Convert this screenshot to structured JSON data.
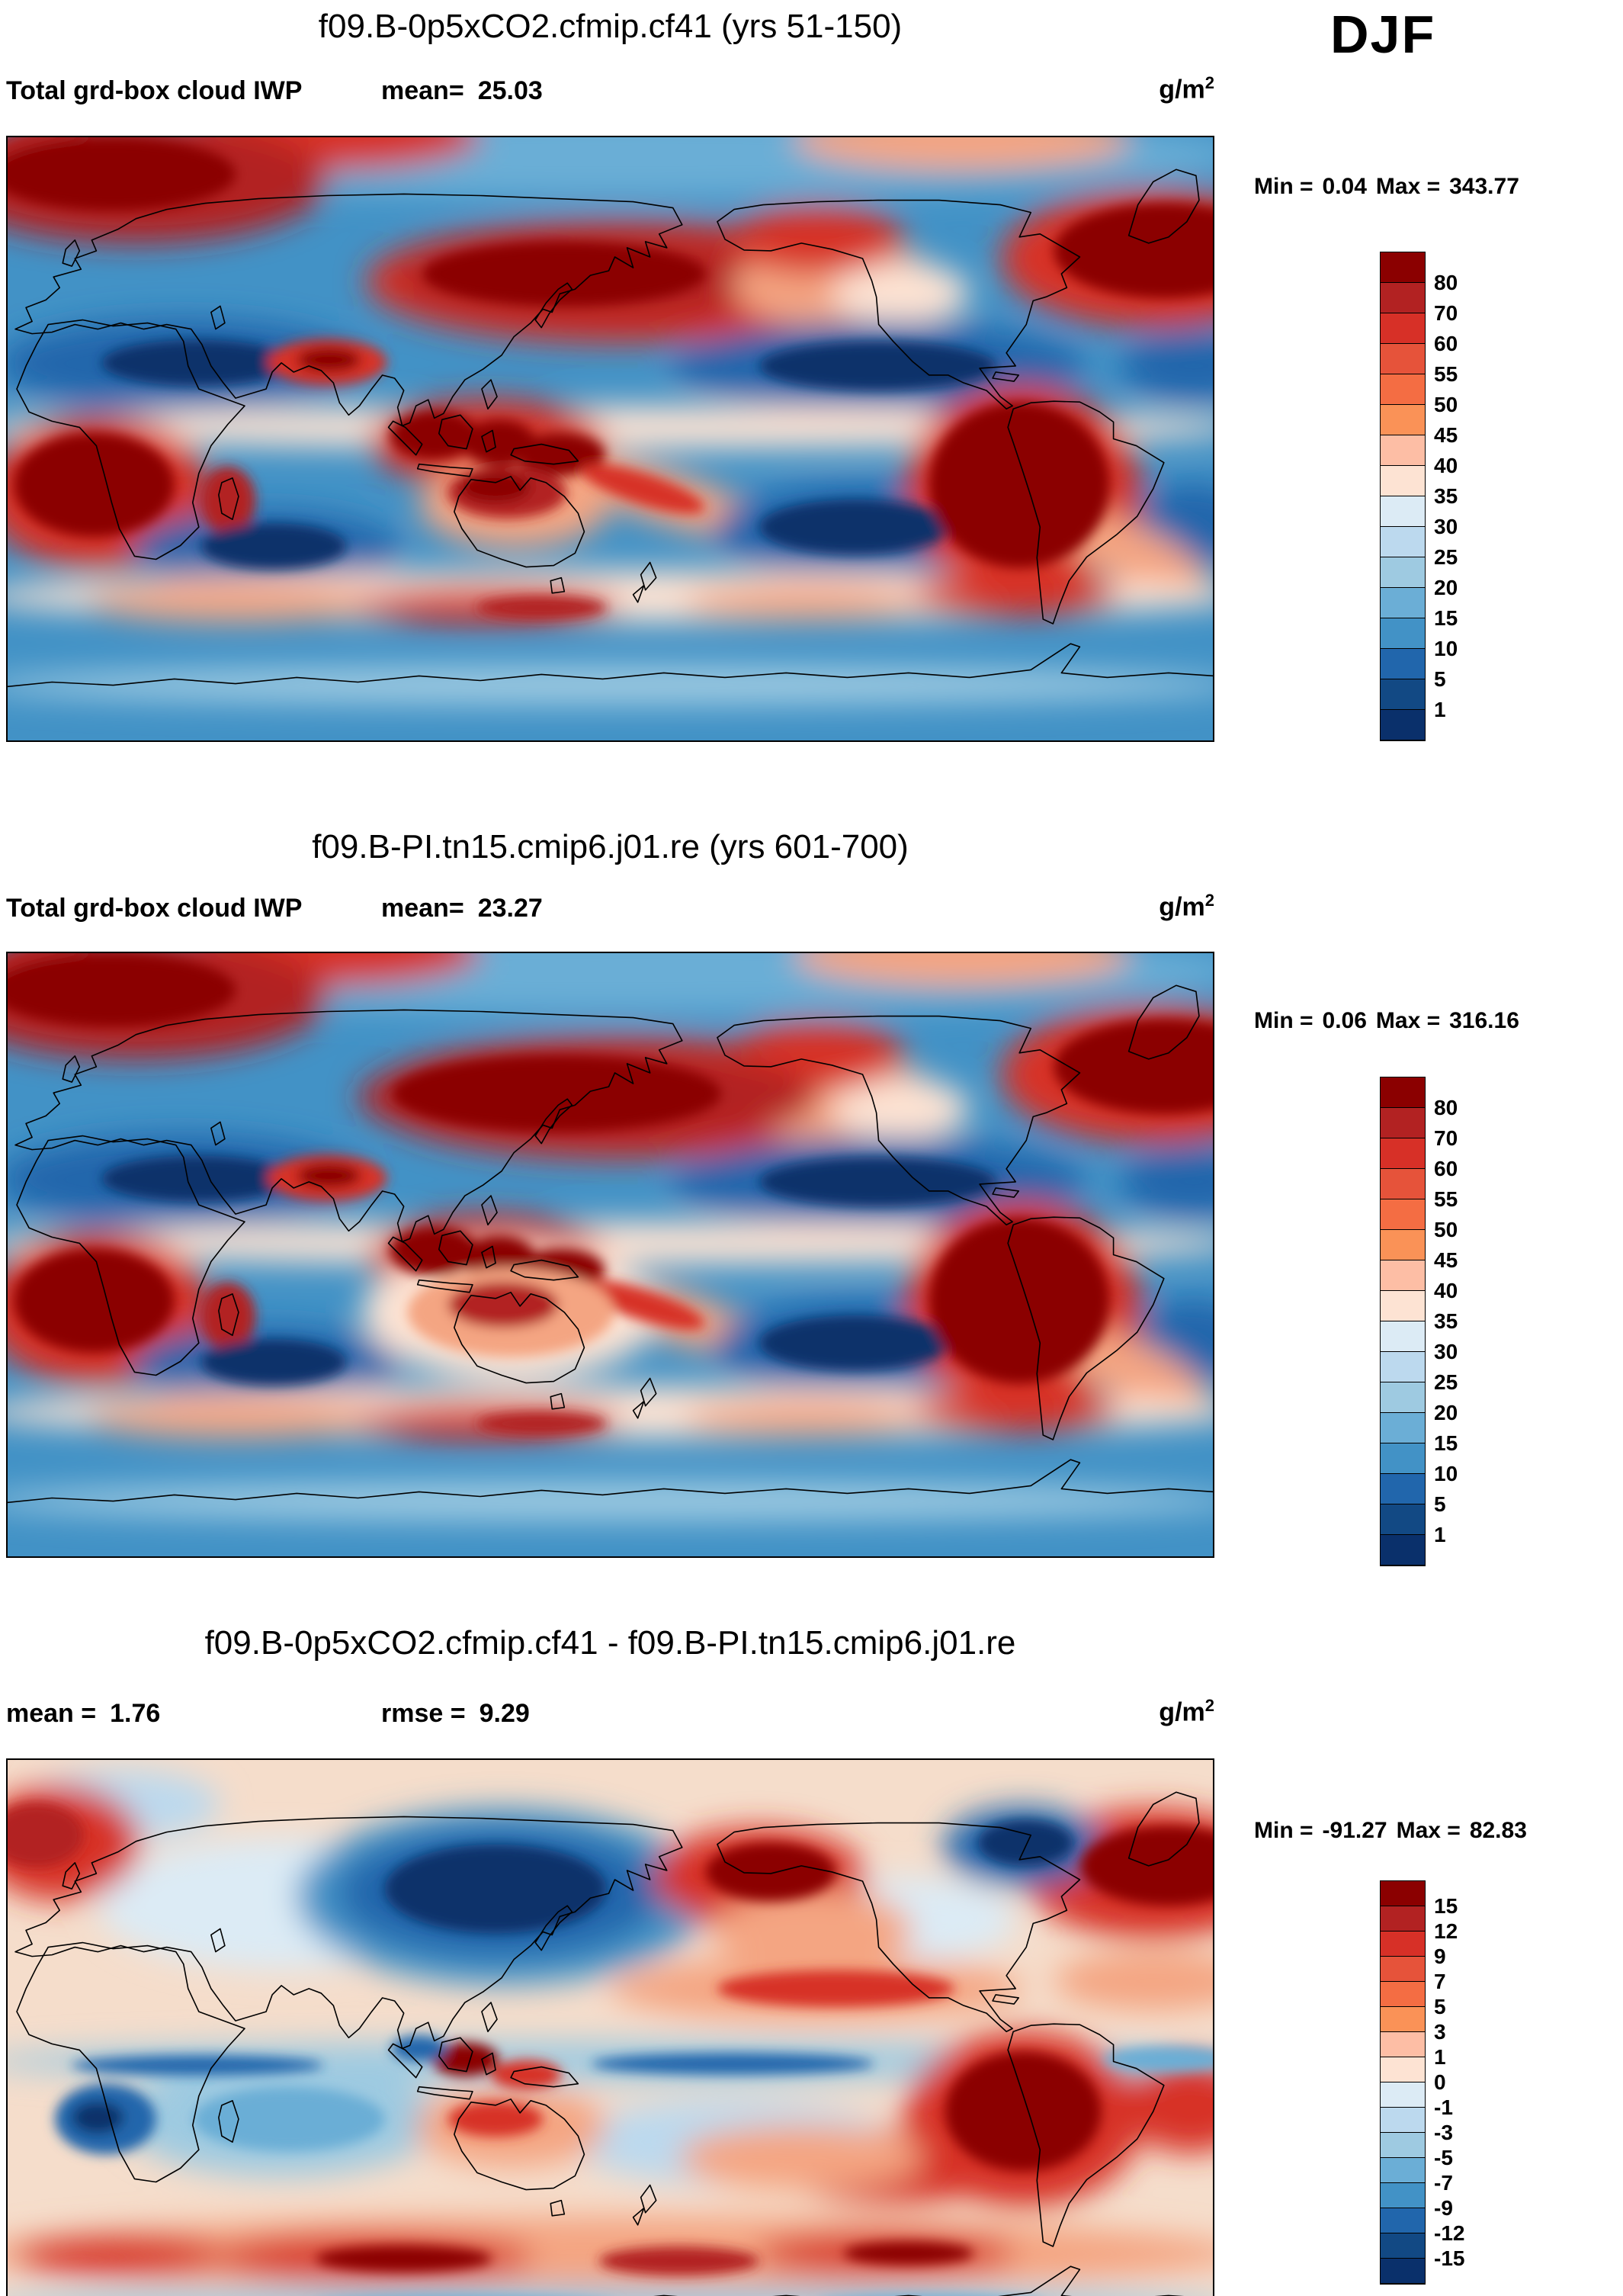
{
  "season": "DJF",
  "panel1": {
    "title": "f09.B-0p5xCO2.cfmip.cf41 (yrs 51-150)",
    "variable": "Total grd-box cloud IWP",
    "mean_label": "mean=",
    "mean_value": "25.03",
    "units_base": "g/m",
    "units_exp": "2",
    "min_label": "Min =",
    "min_value": "0.04",
    "max_label": "Max =",
    "max_value": "343.77"
  },
  "panel2": {
    "title": "f09.B-PI.tn15.cmip6.j01.re (yrs 601-700)",
    "variable": "Total grd-box cloud IWP",
    "mean_label": "mean=",
    "mean_value": "23.27",
    "units_base": "g/m",
    "units_exp": "2",
    "min_label": "Min =",
    "min_value": "0.06",
    "max_label": "Max =",
    "max_value": "316.16"
  },
  "panel3": {
    "title": "f09.B-0p5xCO2.cfmip.cf41 - f09.B-PI.tn15.cmip6.j01.re",
    "mean_label": "mean =",
    "mean_value": "1.76",
    "rmse_label": "rmse =",
    "rmse_value": "9.29",
    "units_base": "g/m",
    "units_exp": "2",
    "min_label": "Min =",
    "min_value": "-91.27",
    "max_label": "Max =",
    "max_value": "82.83"
  },
  "colorbars": {
    "iwp": {
      "labels": [
        "80",
        "70",
        "60",
        "55",
        "50",
        "45",
        "40",
        "35",
        "30",
        "25",
        "20",
        "15",
        "10",
        "5",
        "1"
      ],
      "colors": [
        "#8b0000",
        "#b22222",
        "#d73027",
        "#e6533a",
        "#f46d43",
        "#fa9257",
        "#fdbea5",
        "#fde3d3",
        "#dcebf5",
        "#bcd9ee",
        "#9ecae1",
        "#6baed6",
        "#4292c6",
        "#2166ac",
        "#124984",
        "#0a306b"
      ]
    },
    "diff": {
      "labels": [
        "15",
        "12",
        "9",
        "7",
        "5",
        "3",
        "1",
        "0",
        "-1",
        "-3",
        "-5",
        "-7",
        "-9",
        "-12",
        "-15"
      ],
      "colors": [
        "#8b0000",
        "#b22222",
        "#d73027",
        "#e6533a",
        "#f46d43",
        "#fa9257",
        "#fdbea5",
        "#fde3d3",
        "#dcebf5",
        "#bcd9ee",
        "#9ecae1",
        "#6baed6",
        "#4292c6",
        "#2166ac",
        "#124984",
        "#0a306b"
      ]
    }
  },
  "chart_data": [
    {
      "type": "heatmap",
      "panel": "case",
      "title": "f09.B-0p5xCO2.cfmip.cf41 (yrs 51-150)",
      "variable": "Total grd-box cloud IWP",
      "season": "DJF",
      "units": "g/m2",
      "mean": 25.03,
      "min": 0.04,
      "max": 343.77,
      "contour_levels": [
        1,
        5,
        10,
        15,
        20,
        25,
        30,
        35,
        40,
        45,
        50,
        55,
        60,
        70,
        80
      ],
      "projection": "global equirectangular lat-lon",
      "legend_position": "right",
      "description": "Filled contour world map, blue=low to dark red=high; high IWP over NH storm tracks (N Pacific, N Atlantic, N Europe), tropical convection (Maritime Continent, central Africa, South America, N Australia) and SH mid-latitude storm track; low IWP over subtropical oceans and deserts"
    },
    {
      "type": "heatmap",
      "panel": "reference",
      "title": "f09.B-PI.tn15.cmip6.j01.re (yrs 601-700)",
      "variable": "Total grd-box cloud IWP",
      "season": "DJF",
      "units": "g/m2",
      "mean": 23.27,
      "min": 0.06,
      "max": 316.16,
      "contour_levels": [
        1,
        5,
        10,
        15,
        20,
        25,
        30,
        35,
        40,
        45,
        50,
        55,
        60,
        70,
        80
      ],
      "projection": "global equirectangular lat-lon",
      "legend_position": "right",
      "description": "Same field for the pre-industrial reference run; spatial pattern very similar to the case run"
    },
    {
      "type": "heatmap",
      "panel": "difference",
      "title": "f09.B-0p5xCO2.cfmip.cf41 - f09.B-PI.tn15.cmip6.j01.re",
      "variable": "Total grd-box cloud IWP difference",
      "season": "DJF",
      "units": "g/m2",
      "mean": 1.76,
      "rmse": 9.29,
      "min": -91.27,
      "max": 82.83,
      "contour_levels": [
        -15,
        -12,
        -9,
        -7,
        -5,
        -3,
        -1,
        0,
        1,
        3,
        5,
        7,
        9,
        12,
        15
      ],
      "projection": "global equirectangular lat-lon",
      "legend_position": "right",
      "description": "Difference map: strong negative (dark blue) over NW Pacific and E Canada, positive (dark red) over NE Pacific, N Atlantic, South America/SE Pacific and SH mid-latitude band"
    }
  ]
}
